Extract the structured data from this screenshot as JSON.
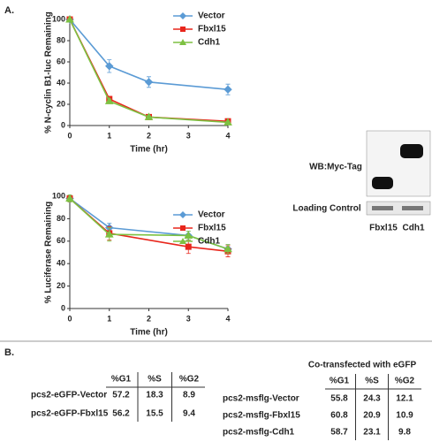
{
  "panel_a_label": "A.",
  "chart_data": [
    {
      "type": "line",
      "ylabel": "% N-cyclin B1-luc Remaining",
      "xlabel": "Time (hr)",
      "x": [
        0,
        1,
        2,
        4
      ],
      "xlim": [
        0,
        4
      ],
      "xticks": [
        0,
        1,
        2,
        3,
        4
      ],
      "ylim": [
        0,
        100
      ],
      "yticks": [
        0,
        20,
        40,
        60,
        80,
        100
      ],
      "series": [
        {
          "name": "Vector",
          "color": "#5b9bd5",
          "marker": "diamond",
          "values": [
            100,
            56,
            41,
            34
          ],
          "errors": [
            0,
            6,
            5,
            5
          ]
        },
        {
          "name": "Fbxl15",
          "color": "#e8261c",
          "marker": "square",
          "values": [
            100,
            25,
            8,
            4
          ],
          "errors": [
            0,
            2,
            2,
            1
          ]
        },
        {
          "name": "Cdh1",
          "color": "#7dc142",
          "marker": "triangle",
          "values": [
            100,
            23,
            8,
            3
          ],
          "errors": [
            0,
            2,
            1,
            1
          ]
        }
      ]
    },
    {
      "type": "line",
      "ylabel": "% Luciferase Remaining",
      "xlabel": "Time (hr)",
      "x": [
        0,
        1,
        3,
        4
      ],
      "xlim": [
        0,
        4
      ],
      "xticks": [
        0,
        1,
        2,
        3,
        4
      ],
      "ylim": [
        0,
        100
      ],
      "yticks": [
        0,
        20,
        40,
        60,
        80,
        100
      ],
      "series": [
        {
          "name": "Vector",
          "color": "#5b9bd5",
          "marker": "diamond",
          "values": [
            98,
            72,
            65,
            53
          ],
          "errors": [
            3,
            4,
            4,
            4
          ]
        },
        {
          "name": "Fbxl15",
          "color": "#e8261c",
          "marker": "square",
          "values": [
            98,
            67,
            55,
            51
          ],
          "errors": [
            3,
            6,
            6,
            5
          ]
        },
        {
          "name": "Cdh1",
          "color": "#7dc142",
          "marker": "triangle",
          "values": [
            98,
            66,
            65,
            53
          ],
          "errors": [
            3,
            6,
            4,
            4
          ]
        }
      ]
    }
  ],
  "blot": {
    "wb_label": "WB:Myc-Tag",
    "loading_label": "Loading Control",
    "lanes": [
      "Fbxl15",
      "Cdh1"
    ]
  },
  "panel_b_label": "B.",
  "tables": [
    {
      "columns": [
        "%G1",
        "%S",
        "%G2"
      ],
      "rows": [
        {
          "label": "pcs2-eGFP-Vector",
          "values": [
            57.2,
            18.3,
            8.9
          ]
        },
        {
          "label": "pcs2-eGFP-Fbxl15",
          "values": [
            56.2,
            15.5,
            9.4
          ]
        }
      ]
    },
    {
      "caption": "Co-transfected with eGFP",
      "columns": [
        "%G1",
        "%S",
        "%G2"
      ],
      "rows": [
        {
          "label": "pcs2-msflg-Vector",
          "values": [
            55.8,
            24.3,
            12.1
          ]
        },
        {
          "label": "pcs2-msflg-Fbxl15",
          "values": [
            60.8,
            20.9,
            10.9
          ]
        },
        {
          "label": "pcs2-msflg-Cdh1",
          "values": [
            58.7,
            23.1,
            9.8
          ]
        }
      ]
    }
  ]
}
